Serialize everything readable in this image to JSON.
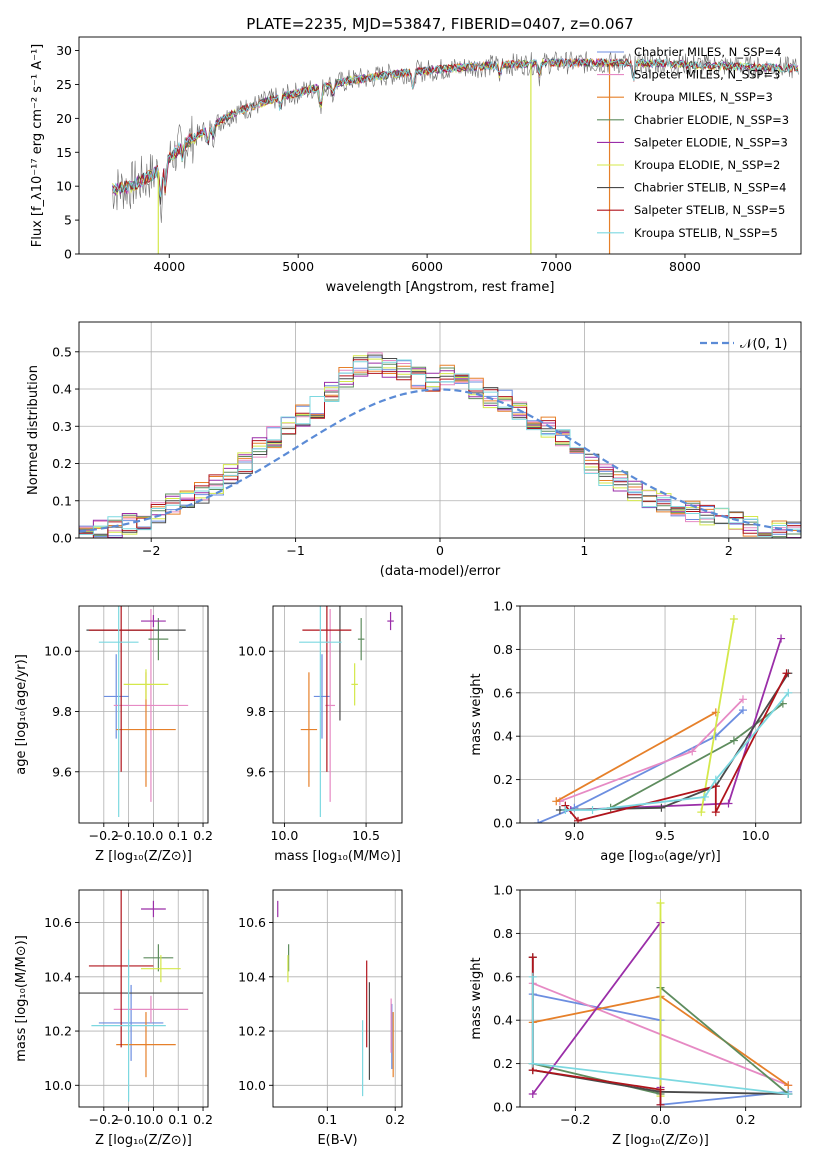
{
  "figure": {
    "title": "PLATE=2235, MJD=53847, FIBERID=0407, z=0.067",
    "colors": {
      "chab_miles": "#6c8ee0",
      "salp_miles": "#e68ac4",
      "krou_miles": "#e6802a",
      "chab_elodie": "#5e8c5e",
      "salp_elodie": "#9a2ea8",
      "krou_elodie": "#d4e84a",
      "chab_stelib": "#4a4a4a",
      "salp_stelib": "#b0141c",
      "krou_stelib": "#7cd8e0"
    }
  },
  "chart_data": [
    {
      "id": "spectrum",
      "type": "line",
      "xlabel": "wavelength [Angstrom, rest frame]",
      "ylabel": "Flux [f_λ10⁻¹⁷ erg cm⁻² s⁻¹ A⁻¹]",
      "xlim": [
        3300,
        8900
      ],
      "ylim": [
        0,
        32
      ],
      "xticks": [
        4000,
        5000,
        6000,
        7000,
        8000
      ],
      "yticks": [
        0,
        5,
        10,
        15,
        20,
        25,
        30
      ],
      "grid": false,
      "legend_position": "right",
      "continuum": {
        "x": [
          3560,
          3700,
          3900,
          4000,
          4100,
          4300,
          4500,
          4800,
          5100,
          5400,
          5800,
          6200,
          6600,
          7000,
          7400,
          7800,
          8200,
          8600,
          8880
        ],
        "y": [
          9.5,
          10.0,
          12.0,
          14.0,
          16.0,
          18.5,
          20.8,
          22.8,
          24.3,
          25.6,
          26.7,
          27.4,
          27.9,
          28.2,
          28.2,
          28.1,
          27.8,
          27.5,
          27.4
        ]
      },
      "series": [
        {
          "name": "Chabrier MILES, N_SSP=4",
          "color_key": "chab_miles"
        },
        {
          "name": "Salpeter MILES, N_SSP=3",
          "color_key": "salp_miles"
        },
        {
          "name": "Kroupa MILES, N_SSP=3",
          "color_key": "krou_miles"
        },
        {
          "name": "Chabrier ELODIE, N_SSP=3",
          "color_key": "chab_elodie"
        },
        {
          "name": "Salpeter ELODIE, N_SSP=3",
          "color_key": "salp_elodie"
        },
        {
          "name": "Kroupa ELODIE, N_SSP=2",
          "color_key": "krou_elodie"
        },
        {
          "name": "Chabrier STELIB, N_SSP=4",
          "color_key": "chab_stelib"
        },
        {
          "name": "Salpeter STELIB, N_SSP=5",
          "color_key": "salp_stelib"
        },
        {
          "name": "Kroupa STELIB, N_SSP=5",
          "color_key": "krou_stelib"
        }
      ]
    },
    {
      "id": "residuals",
      "type": "histogram",
      "xlabel": "(data-model)/error",
      "ylabel": "Normed distribution",
      "xlim": [
        -2.5,
        2.5
      ],
      "ylim": [
        0,
        0.58
      ],
      "xticks": [
        -2,
        -1,
        0,
        1,
        2
      ],
      "yticks": [
        0.0,
        0.1,
        0.2,
        0.3,
        0.4,
        0.5
      ],
      "grid": true,
      "legend_label": "𝒩(0, 1)",
      "legend_position": "top-right",
      "bin_edges_start": -2.5,
      "bin_width": 0.1,
      "profile": [
        0.02,
        0.02,
        0.03,
        0.04,
        0.05,
        0.07,
        0.09,
        0.1,
        0.12,
        0.14,
        0.17,
        0.2,
        0.24,
        0.27,
        0.3,
        0.33,
        0.35,
        0.39,
        0.43,
        0.46,
        0.47,
        0.46,
        0.45,
        0.43,
        0.42,
        0.44,
        0.42,
        0.4,
        0.38,
        0.37,
        0.34,
        0.32,
        0.3,
        0.27,
        0.24,
        0.2,
        0.17,
        0.15,
        0.13,
        0.11,
        0.09,
        0.08,
        0.07,
        0.06,
        0.05,
        0.04,
        0.03,
        0.03,
        0.02,
        0.02
      ]
    },
    {
      "id": "age_vs_Z",
      "type": "errorbar",
      "xlabel": "Z [log₁₀(Z/Z⊙)]",
      "ylabel": "age  [log₁₀(age/yr)]",
      "xlim": [
        -0.3,
        0.22
      ],
      "ylim": [
        9.43,
        10.15
      ],
      "xticks": [
        -0.2,
        -0.1,
        0.0,
        0.1,
        0.2
      ],
      "yticks": [
        9.6,
        9.8,
        10.0
      ],
      "grid": true,
      "points": [
        {
          "k": "chab_miles",
          "x": -0.15,
          "xe": 0.05,
          "y": 9.85,
          "ye": 0.14
        },
        {
          "k": "salp_miles",
          "x": -0.01,
          "xe": 0.15,
          "y": 9.82,
          "ye": 0.32
        },
        {
          "k": "krou_miles",
          "x": -0.03,
          "xe": 0.12,
          "y": 9.74,
          "ye": 0.19
        },
        {
          "k": "chab_elodie",
          "x": 0.02,
          "xe": 0.04,
          "y": 10.04,
          "ye": 0.07
        },
        {
          "k": "salp_elodie",
          "x": 0.0,
          "xe": 0.05,
          "y": 10.1,
          "ye": 0.02
        },
        {
          "k": "krou_elodie",
          "x": -0.03,
          "xe": 0.09,
          "y": 9.89,
          "ye": 0.05
        },
        {
          "k": "chab_stelib",
          "x": -0.07,
          "xe": 0.2,
          "y": 10.07,
          "ye": 0.0
        },
        {
          "k": "salp_stelib",
          "x": -0.13,
          "xe": 0.13,
          "y": 10.07,
          "ye": 0.47
        },
        {
          "k": "krou_stelib",
          "x": -0.14,
          "xe": 0.08,
          "y": 10.03,
          "ye": 0.58
        }
      ]
    },
    {
      "id": "age_vs_mass",
      "type": "errorbar",
      "xlabel": "mass [log₁₀(M/M⊙)]",
      "ylabel": "",
      "xlim": [
        9.93,
        10.72
      ],
      "ylim": [
        9.43,
        10.15
      ],
      "xticks": [
        10.0,
        10.5
      ],
      "yticks": [
        9.6,
        9.8,
        10.0
      ],
      "grid": true,
      "points": [
        {
          "k": "chab_miles",
          "x": 10.23,
          "xe": 0.05,
          "y": 9.85,
          "ye": 0.14
        },
        {
          "k": "salp_miles",
          "x": 10.28,
          "xe": 0.03,
          "y": 9.82,
          "ye": 0.32
        },
        {
          "k": "krou_miles",
          "x": 10.15,
          "xe": 0.05,
          "y": 9.74,
          "ye": 0.19
        },
        {
          "k": "chab_elodie",
          "x": 10.47,
          "xe": 0.02,
          "y": 10.04,
          "ye": 0.07
        },
        {
          "k": "salp_elodie",
          "x": 10.65,
          "xe": 0.02,
          "y": 10.1,
          "ye": 0.03
        },
        {
          "k": "krou_elodie",
          "x": 10.43,
          "xe": 0.02,
          "y": 9.89,
          "ye": 0.07
        },
        {
          "k": "chab_stelib",
          "x": 10.34,
          "xe": 0.0,
          "y": 10.07,
          "ye": 0.3
        },
        {
          "k": "salp_stelib",
          "x": 10.26,
          "xe": 0.15,
          "y": 10.07,
          "ye": 0.47
        },
        {
          "k": "krou_stelib",
          "x": 10.22,
          "xe": 0.13,
          "y": 10.03,
          "ye": 0.58
        }
      ]
    },
    {
      "id": "weight_vs_age",
      "type": "line",
      "xlabel": "age  [log₁₀(age/yr)]",
      "ylabel": "mass weight",
      "xlim": [
        8.7,
        10.25
      ],
      "ylim": [
        0,
        1.0
      ],
      "xticks": [
        9.0,
        9.5,
        10.0
      ],
      "yticks": [
        0.0,
        0.2,
        0.4,
        0.6,
        0.8,
        1.0
      ],
      "grid": true,
      "series": [
        {
          "k": "chab_miles",
          "x": [
            8.8,
            9.0,
            9.78,
            9.93
          ],
          "y": [
            0.0,
            0.07,
            0.4,
            0.52
          ]
        },
        {
          "k": "salp_miles",
          "x": [
            8.92,
            9.65,
            9.93
          ],
          "y": [
            0.1,
            0.33,
            0.57
          ]
        },
        {
          "k": "krou_miles",
          "x": [
            8.9,
            9.78
          ],
          "y": [
            0.1,
            0.51
          ]
        },
        {
          "k": "chab_elodie",
          "x": [
            9.2,
            9.88,
            10.15
          ],
          "y": [
            0.07,
            0.38,
            0.55
          ]
        },
        {
          "k": "salp_elodie",
          "x": [
            8.98,
            9.85,
            10.14
          ],
          "y": [
            0.06,
            0.09,
            0.85
          ]
        },
        {
          "k": "krou_elodie",
          "x": [
            9.7,
            9.88
          ],
          "y": [
            0.05,
            0.94
          ]
        },
        {
          "k": "chab_stelib",
          "x": [
            8.92,
            9.48,
            9.78,
            10.18
          ],
          "y": [
            0.06,
            0.07,
            0.17,
            0.69
          ]
        },
        {
          "k": "salp_stelib",
          "x": [
            8.95,
            9.02,
            9.78,
            9.78,
            10.17
          ],
          "y": [
            0.08,
            0.01,
            0.17,
            0.05,
            0.69
          ]
        },
        {
          "k": "krou_stelib",
          "x": [
            8.95,
            9.1,
            9.72,
            9.78,
            10.18
          ],
          "y": [
            0.06,
            0.06,
            0.12,
            0.2,
            0.6
          ]
        }
      ]
    },
    {
      "id": "mass_vs_Z",
      "type": "errorbar",
      "xlabel": "Z [log₁₀(Z/Z⊙)]",
      "ylabel": "mass [log₁₀(M/M⊙)]",
      "xlim": [
        -0.3,
        0.22
      ],
      "ylim": [
        9.92,
        10.72
      ],
      "xticks": [
        -0.2,
        -0.1,
        0.0,
        0.1,
        0.2
      ],
      "yticks": [
        10.0,
        10.2,
        10.4,
        10.6
      ],
      "grid": true,
      "points": [
        {
          "k": "chab_miles",
          "x": -0.09,
          "xe": 0.13,
          "y": 10.23,
          "ye": 0.14
        },
        {
          "k": "salp_miles",
          "x": -0.01,
          "xe": 0.15,
          "y": 10.28,
          "ye": 0.05
        },
        {
          "k": "krou_miles",
          "x": -0.03,
          "xe": 0.12,
          "y": 10.15,
          "ye": 0.12
        },
        {
          "k": "chab_elodie",
          "x": 0.02,
          "xe": 0.06,
          "y": 10.47,
          "ye": 0.05
        },
        {
          "k": "salp_elodie",
          "x": 0.0,
          "xe": 0.05,
          "y": 10.65,
          "ye": 0.03
        },
        {
          "k": "krou_elodie",
          "x": 0.03,
          "xe": 0.08,
          "y": 10.43,
          "ye": 0.05
        },
        {
          "k": "chab_stelib",
          "x": -0.06,
          "xe": 0.26,
          "y": 10.34,
          "ye": 0.0
        },
        {
          "k": "salp_stelib",
          "x": -0.13,
          "xe": 0.13,
          "y": 10.44,
          "ye": 0.3
        },
        {
          "k": "krou_stelib",
          "x": -0.1,
          "xe": 0.15,
          "y": 10.22,
          "ye": 0.28
        }
      ]
    },
    {
      "id": "mass_vs_ebv",
      "type": "errorbar",
      "xlabel": "E(B-V)",
      "ylabel": "",
      "xlim": [
        0.02,
        0.21
      ],
      "ylim": [
        9.92,
        10.72
      ],
      "xticks": [
        0.1,
        0.2
      ],
      "yticks": [
        10.0,
        10.2,
        10.4,
        10.6
      ],
      "grid": true,
      "points": [
        {
          "k": "chab_miles",
          "x": 0.195,
          "xe": 0.0,
          "y": 10.18,
          "ye": 0.12
        },
        {
          "k": "salp_miles",
          "x": 0.194,
          "xe": 0.0,
          "y": 10.22,
          "ye": 0.1
        },
        {
          "k": "krou_miles",
          "x": 0.197,
          "xe": 0.0,
          "y": 10.15,
          "ye": 0.12
        },
        {
          "k": "chab_elodie",
          "x": 0.043,
          "xe": 0.0,
          "y": 10.47,
          "ye": 0.05
        },
        {
          "k": "salp_elodie",
          "x": 0.027,
          "xe": 0.0,
          "y": 10.65,
          "ye": 0.03
        },
        {
          "k": "krou_elodie",
          "x": 0.042,
          "xe": 0.0,
          "y": 10.43,
          "ye": 0.05
        },
        {
          "k": "chab_stelib",
          "x": 0.162,
          "xe": 0.0,
          "y": 10.2,
          "ye": 0.18
        },
        {
          "k": "salp_stelib",
          "x": 0.158,
          "xe": 0.0,
          "y": 10.3,
          "ye": 0.16
        },
        {
          "k": "krou_stelib",
          "x": 0.152,
          "xe": 0.0,
          "y": 10.1,
          "ye": 0.14
        }
      ]
    },
    {
      "id": "weight_vs_Z",
      "type": "line",
      "xlabel": "Z [log₁₀(Z/Z⊙)]",
      "ylabel": "mass weight",
      "xlim": [
        -0.33,
        0.33
      ],
      "ylim": [
        0,
        1.0
      ],
      "xticks": [
        -0.2,
        0.0,
        0.2
      ],
      "yticks": [
        0.0,
        0.2,
        0.4,
        0.6,
        0.8,
        1.0
      ],
      "grid": true,
      "series": [
        {
          "k": "chab_miles",
          "x": [
            -0.3,
            0.0,
            0.0,
            0.3
          ],
          "y": [
            0.52,
            0.4,
            0.01,
            0.07
          ]
        },
        {
          "k": "salp_miles",
          "x": [
            -0.3,
            0.3
          ],
          "y": [
            0.57,
            0.1
          ]
        },
        {
          "k": "krou_miles",
          "x": [
            -0.3,
            0.0,
            0.3
          ],
          "y": [
            0.39,
            0.51,
            0.1
          ]
        },
        {
          "k": "chab_elodie",
          "x": [
            -0.3,
            0.0,
            0.0,
            0.3
          ],
          "y": [
            0.2,
            0.06,
            0.55,
            0.06
          ]
        },
        {
          "k": "salp_elodie",
          "x": [
            -0.3,
            0.0,
            0.0
          ],
          "y": [
            0.06,
            0.85,
            0.09
          ]
        },
        {
          "k": "krou_elodie",
          "x": [
            0.0,
            0.0
          ],
          "y": [
            0.94,
            0.05
          ]
        },
        {
          "k": "chab_stelib",
          "x": [
            -0.3,
            -0.3,
            0.0,
            0.3
          ],
          "y": [
            0.69,
            0.17,
            0.07,
            0.06
          ]
        },
        {
          "k": "salp_stelib",
          "x": [
            -0.3,
            -0.3,
            0.0,
            0.0
          ],
          "y": [
            0.69,
            0.17,
            0.08,
            0.01
          ]
        },
        {
          "k": "krou_stelib",
          "x": [
            -0.3,
            -0.3,
            0.3
          ],
          "y": [
            0.6,
            0.2,
            0.06
          ]
        }
      ]
    }
  ]
}
